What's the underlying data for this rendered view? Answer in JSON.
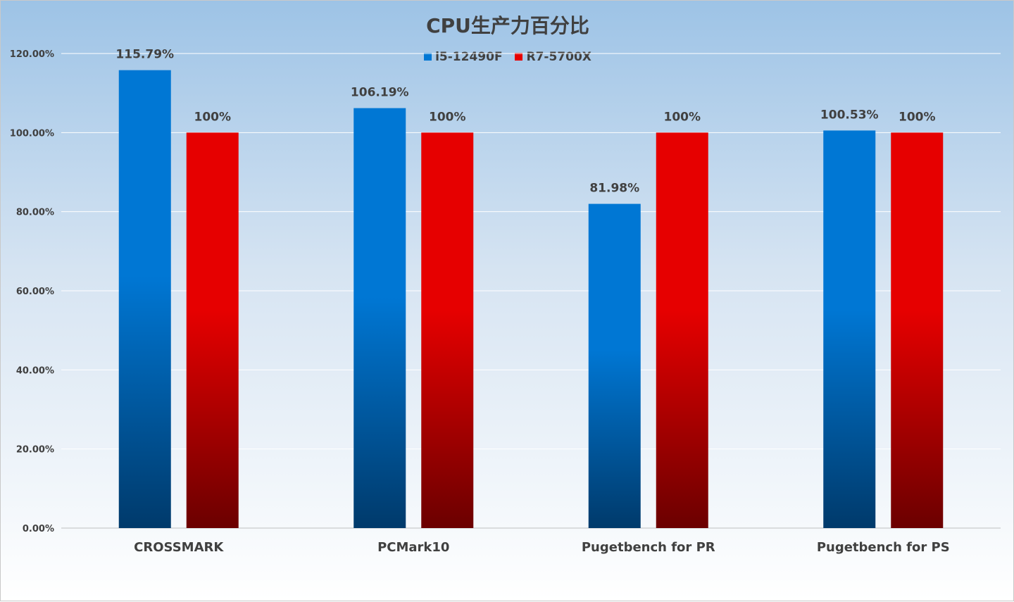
{
  "chart_data": {
    "type": "bar",
    "title": "CPU生产力百分比",
    "xlabel": "",
    "ylabel": "",
    "categories": [
      "CROSSMARK",
      "PCMark10",
      "Pugetbench for PR",
      "Pugetbench for PS"
    ],
    "series": [
      {
        "name": "i5-12490F",
        "values": [
          115.79,
          106.19,
          81.98,
          100.53
        ],
        "labels": [
          "115.79%",
          "106.19%",
          "81.98%",
          "100.53%"
        ],
        "color": "#0077d4",
        "color_dark": "#003a6b"
      },
      {
        "name": "R7-5700X",
        "values": [
          100,
          100,
          100,
          100
        ],
        "labels": [
          "100%",
          "100%",
          "100%",
          "100%"
        ],
        "color": "#e60000",
        "color_dark": "#6b0000"
      }
    ],
    "ylim": [
      0,
      120
    ],
    "yticks": [
      {
        "value": 0,
        "label": "0.00%"
      },
      {
        "value": 20,
        "label": "20.00%"
      },
      {
        "value": 40,
        "label": "40.00%"
      },
      {
        "value": 60,
        "label": "60.00%"
      },
      {
        "value": 80,
        "label": "80.00%"
      },
      {
        "value": 100,
        "label": "100.00%"
      },
      {
        "value": 120,
        "label": "120.00%"
      }
    ],
    "grid": true,
    "legend_position": "top-center",
    "background_colors": {
      "top": "#9dc3e6",
      "bottom": "#ffffff"
    }
  }
}
